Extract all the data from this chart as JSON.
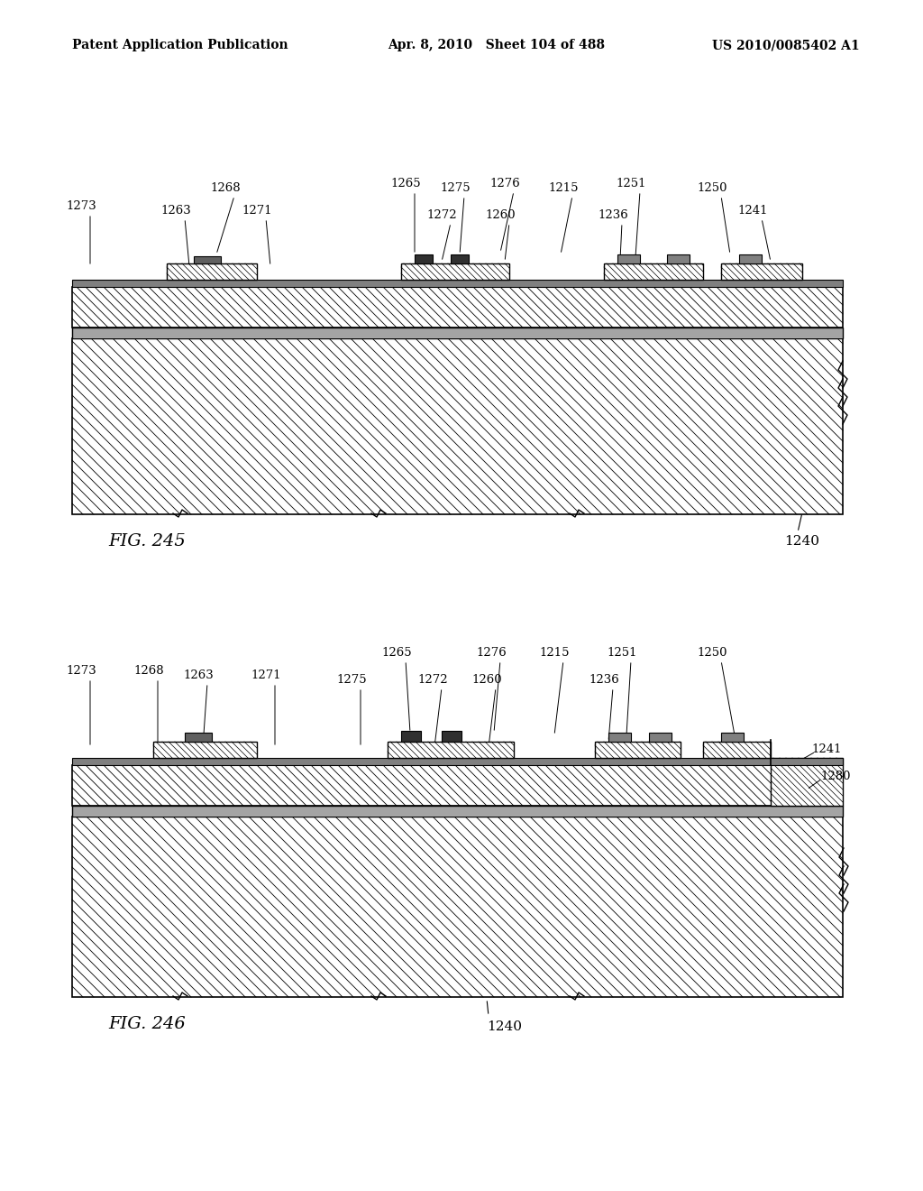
{
  "header_left": "Patent Application Publication",
  "header_middle": "Apr. 8, 2010   Sheet 104 of 488",
  "header_right": "US 2010/0085402 A1",
  "fig1_label": "FIG. 245",
  "fig2_label": "FIG. 246",
  "fig1_ref": "1240",
  "fig2_ref1": "1241",
  "fig2_ref2": "1280",
  "fig2_ref3": "1240",
  "fig1_labels": [
    "1268",
    "1265",
    "1275",
    "1276",
    "1215",
    "1251",
    "1250",
    "1273",
    "1263",
    "1271",
    "1272",
    "1260",
    "1236",
    "1241"
  ],
  "fig2_labels": [
    "1265",
    "1276",
    "1215",
    "1251",
    "1250",
    "1273",
    "1268",
    "1263",
    "1271",
    "1275",
    "1272",
    "1260",
    "1236"
  ],
  "bg_color": "#ffffff",
  "line_color": "#000000",
  "hatch_color": "#000000",
  "gray_color": "#c8c8c8",
  "dark_gray": "#808080"
}
